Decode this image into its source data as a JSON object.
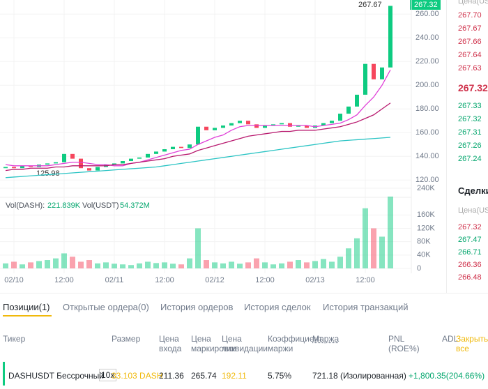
{
  "chart_data": {
    "type": "candlestick",
    "categories": [
      null,
      "02/10",
      null,
      null,
      null,
      null,
      null,
      "12:00",
      null,
      null,
      null,
      null,
      null,
      "02/11",
      null,
      null,
      null,
      null,
      null,
      "12:00",
      null,
      null,
      null,
      null,
      null,
      "02/12",
      null,
      null,
      null,
      null,
      null,
      "12:00",
      null,
      null,
      null,
      null,
      null,
      "02/13",
      null,
      null,
      null,
      null,
      null,
      "12:00",
      null,
      null,
      null
    ],
    "open": [
      130,
      131,
      130,
      132,
      131,
      133,
      134,
      135,
      142,
      138,
      130,
      128,
      131,
      133,
      134,
      136,
      138,
      139,
      142,
      144,
      146,
      148,
      147,
      150,
      165,
      162,
      164,
      166,
      168,
      170,
      167,
      164,
      166,
      167,
      168,
      165,
      166,
      164,
      166,
      168,
      170,
      176,
      182,
      192,
      218,
      205,
      215
    ],
    "close": [
      131,
      130,
      132,
      131,
      133,
      134,
      135,
      142,
      138,
      130,
      128,
      131,
      133,
      134,
      136,
      138,
      139,
      142,
      144,
      146,
      148,
      147,
      150,
      165,
      162,
      164,
      166,
      168,
      170,
      167,
      164,
      166,
      167,
      168,
      165,
      166,
      164,
      166,
      168,
      170,
      176,
      182,
      192,
      218,
      205,
      215,
      267
    ],
    "up_color": "#0ecb81",
    "down_color": "#f6465d",
    "ylim": [
      106,
      269
    ],
    "yticks": [
      {
        "value": 120,
        "label": "120.00"
      },
      {
        "value": 140,
        "label": "140.00"
      },
      {
        "value": 160,
        "label": "160.00"
      },
      {
        "value": 180,
        "label": "180.00"
      },
      {
        "value": 200,
        "label": "200.00"
      },
      {
        "value": 220,
        "label": "220.00"
      },
      {
        "value": 240,
        "label": "240.00"
      },
      {
        "value": 260,
        "label": "260.00"
      }
    ],
    "series": [
      {
        "color": "#e040d8",
        "values": [
          133,
          132,
          132,
          132,
          132,
          132,
          133,
          134,
          135,
          135,
          134,
          133,
          133,
          132,
          132,
          134,
          135,
          137,
          139,
          141,
          143,
          145,
          146,
          150,
          153,
          156,
          158,
          162,
          165,
          166,
          166,
          166,
          166,
          166,
          166,
          166,
          166,
          165,
          166,
          167,
          168,
          171,
          175,
          183,
          190,
          200,
          213
        ]
      },
      {
        "color": "#b8186e",
        "values": [
          128,
          129,
          129,
          130,
          130,
          130,
          131,
          131,
          132,
          132,
          132,
          132,
          132,
          133,
          133,
          134,
          135,
          136,
          137,
          138,
          140,
          141,
          142,
          145,
          147,
          149,
          151,
          153,
          155,
          157,
          158,
          159,
          160,
          161,
          161,
          162,
          162,
          162,
          163,
          164,
          165,
          167,
          169,
          172,
          175,
          180,
          185
        ]
      },
      {
        "color": "#2bc4c4",
        "values": [
          122,
          122.5,
          123,
          123.5,
          124,
          124.5,
          125,
          125.5,
          126,
          126.5,
          127,
          127.5,
          128,
          128.5,
          129,
          129.5,
          130,
          130.5,
          131,
          132,
          133,
          134,
          135,
          136,
          137,
          138,
          139,
          140,
          141,
          142,
          143,
          144,
          145,
          146,
          147,
          148,
          149,
          150,
          151,
          152,
          153,
          153.5,
          154,
          154.5,
          155,
          155.5,
          156
        ]
      }
    ],
    "high_label": "267.67",
    "low_label": "125.98",
    "last_price": "267.32",
    "volume": {
      "label1": "Vol(DASH):",
      "value1": "221.839K",
      "label2": "Vol(USDT)",
      "value2": "54.372M",
      "values": [
        15000,
        20000,
        12000,
        18000,
        22000,
        25000,
        30000,
        45000,
        35000,
        20000,
        25000,
        15000,
        18000,
        14000,
        12000,
        10000,
        15000,
        20000,
        16000,
        18000,
        14000,
        12000,
        30000,
        120000,
        25000,
        18000,
        15000,
        20000,
        14000,
        18000,
        30000,
        18000,
        12000,
        15000,
        20000,
        25000,
        18000,
        22000,
        28000,
        20000,
        35000,
        60000,
        90000,
        180000,
        120000,
        95000,
        215000
      ],
      "ylim": [
        0,
        240000
      ],
      "yticks": [
        0,
        {
          "value": 40000,
          "label": "40K"
        },
        {
          "value": 80000,
          "label": "80K"
        },
        {
          "value": 120000,
          "label": "120K"
        },
        {
          "value": 160000,
          "label": "160K"
        },
        {
          "value": 240000,
          "label": "240K"
        }
      ]
    }
  },
  "order_book": {
    "header": "Цена(USDT)",
    "asks": [
      "267.70",
      "267.67",
      "267.66",
      "267.64",
      "267.63"
    ],
    "mid": "267.32",
    "bids": [
      "267.33",
      "267.32",
      "267.31",
      "267.26",
      "267.24"
    ]
  },
  "trades": {
    "title": "Сделки",
    "header": "Цена(USDT)",
    "prices": [
      "267.32",
      "267.47",
      "266.71",
      "266.36",
      "266.48"
    ]
  },
  "tabs": [
    "Позиции(1)",
    "Открытые ордера(0)",
    "История ордеров",
    "История сделок",
    "История транзакций"
  ],
  "table": {
    "headers": [
      "Тикер",
      "Размер",
      "Цена входа",
      "Цена маркировки",
      "Цена ликвидации",
      "Коэффициент маржи",
      "Маржа",
      "PNL (ROE%)",
      "ADL",
      "Закрыть все"
    ],
    "row": [
      "DASHUSDT Бессрочный",
      "10x",
      "33.103 DASH",
      "211.36",
      "265.74",
      "192.11",
      "5.75%",
      "721.18 (Изолированная)",
      "+1,800.35(204.66%)"
    ]
  }
}
